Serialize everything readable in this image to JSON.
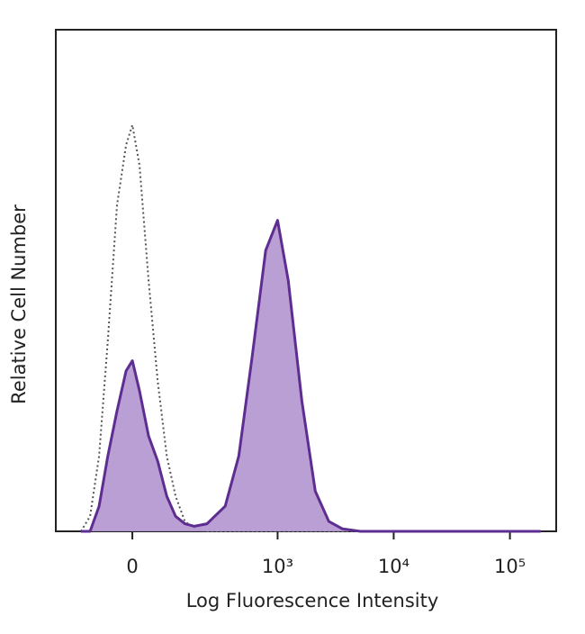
{
  "chart_data": {
    "type": "histogram_overlay",
    "xlabel": "Log Fluorescence Intensity",
    "ylabel": "Relative Cell Number",
    "x_scale": "biexponential",
    "x": [
      -136,
      -106,
      -80,
      -57,
      -35,
      -14,
      0,
      16,
      37,
      59,
      83,
      109,
      140,
      176,
      235,
      346,
      458,
      602,
      788,
      1000,
      1236,
      1619,
      2114,
      2765,
      3616,
      5168,
      183800
    ],
    "series": [
      {
        "color": "#555555",
        "line_style": "dotted",
        "fill": "none",
        "values": [
          0,
          3,
          15,
          38,
          65,
          77,
          81,
          73,
          50,
          30,
          15,
          7,
          2,
          0.5,
          0,
          0,
          0,
          0,
          0,
          0,
          0,
          0,
          0,
          0,
          0,
          0,
          0
        ]
      },
      {
        "color": "#5e2d91",
        "line_style": "solid",
        "fill": "#b69ad2",
        "values": [
          0,
          0,
          5,
          15,
          24,
          32,
          34,
          28,
          19,
          14,
          7,
          3,
          1.5,
          1,
          1.5,
          5,
          15,
          35,
          56,
          62,
          50,
          26,
          8,
          2,
          0.5,
          0,
          0
        ]
      }
    ],
    "xlim": [
      -245,
      250000
    ],
    "ylim": [
      0,
      100
    ],
    "xticks": [
      0,
      {
        "value": 1000,
        "label": "10³"
      },
      {
        "value": 10000,
        "label": "10⁴"
      },
      {
        "value": 100000,
        "label": "10⁵"
      }
    ]
  }
}
